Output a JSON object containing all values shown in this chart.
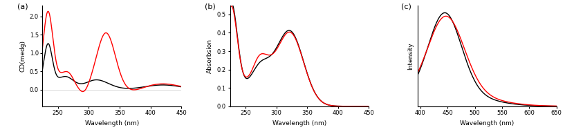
{
  "panel_labels": [
    "(a)",
    "(b)",
    "(c)"
  ],
  "cd": {
    "xlabel": "Wavelength (nm)",
    "ylabel": "CD(medg)",
    "xlim": [
      225,
      450
    ],
    "ylim": [
      -0.45,
      2.3
    ],
    "yticks": [
      0.0,
      0.5,
      1.0,
      1.5,
      2.0
    ],
    "xticks": [
      250,
      300,
      350,
      400,
      450
    ],
    "hline_y": 0.0
  },
  "uv": {
    "xlabel": "Wavelength (nm)",
    "ylabel": "Absorbsion",
    "xlim": [
      225,
      450
    ],
    "ylim": [
      0.0,
      0.55
    ],
    "yticks": [
      0.0,
      0.1,
      0.2,
      0.3,
      0.4,
      0.5
    ],
    "xticks": [
      250,
      300,
      350,
      400,
      450
    ]
  },
  "em": {
    "xlabel": "Wavelength (nm)",
    "ylabel": "Intensity",
    "xlim": [
      395,
      650
    ],
    "ylim": [
      0,
      1.08
    ],
    "xticks": [
      400,
      450,
      500,
      550,
      600,
      650
    ]
  },
  "line_colors": [
    "black",
    "red"
  ],
  "linewidth": 1.0
}
